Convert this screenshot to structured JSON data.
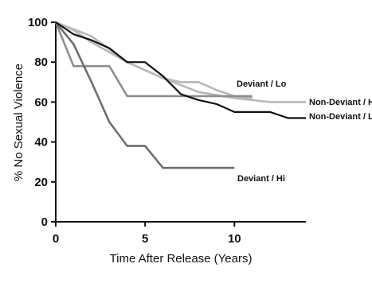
{
  "chart_data": {
    "type": "line",
    "xlabel": "Time After Release (Years)",
    "ylabel": "% No Sexual Violence",
    "xlim": [
      0,
      14
    ],
    "ylim": [
      0,
      100
    ],
    "xticks": [
      0,
      5,
      10
    ],
    "yticks": [
      0,
      20,
      40,
      60,
      80,
      100
    ],
    "grid": false,
    "legend": "none",
    "series": [
      {
        "name": "Deviant / Lo",
        "color": "#b8b8b8",
        "points": [
          [
            0,
            100
          ],
          [
            1,
            96
          ],
          [
            2,
            90
          ],
          [
            3,
            85
          ],
          [
            4,
            80
          ],
          [
            5,
            76
          ],
          [
            6,
            72
          ],
          [
            7,
            70
          ],
          [
            8,
            70
          ],
          [
            9,
            66
          ],
          [
            10,
            63
          ],
          [
            11,
            62
          ]
        ]
      },
      {
        "name": "Non-Deviant / Hi",
        "color": "#b8b8b8",
        "points": [
          [
            0,
            100
          ],
          [
            2,
            93
          ],
          [
            4,
            80
          ],
          [
            6,
            72
          ],
          [
            8,
            65
          ],
          [
            10,
            62
          ],
          [
            12,
            60
          ],
          [
            14,
            60
          ]
        ]
      },
      {
        "name": "Non-Deviant / Lo",
        "color": "#111111",
        "points": [
          [
            0,
            100
          ],
          [
            1,
            94
          ],
          [
            2,
            91
          ],
          [
            3,
            87
          ],
          [
            4,
            80
          ],
          [
            5,
            80
          ],
          [
            6,
            73
          ],
          [
            7,
            64
          ],
          [
            8,
            61
          ],
          [
            9,
            59
          ],
          [
            10,
            55
          ],
          [
            11,
            55
          ],
          [
            12,
            55
          ],
          [
            13,
            52
          ],
          [
            14,
            52
          ]
        ]
      },
      {
        "name": "Deviant / Hi",
        "color": "#6e6e6e",
        "points": [
          [
            0,
            100
          ],
          [
            1,
            89
          ],
          [
            2,
            70
          ],
          [
            3,
            50
          ],
          [
            4,
            38
          ],
          [
            5,
            38
          ],
          [
            6,
            27
          ],
          [
            7,
            27
          ],
          [
            8,
            27
          ],
          [
            9,
            27
          ],
          [
            10,
            27
          ]
        ]
      },
      {
        "name": "",
        "color": "#8e8e8e",
        "points": [
          [
            0,
            100
          ],
          [
            1,
            78
          ],
          [
            2,
            78
          ],
          [
            3,
            78
          ],
          [
            4,
            63
          ],
          [
            5,
            63
          ],
          [
            6,
            63
          ],
          [
            7,
            63
          ],
          [
            8,
            63
          ],
          [
            9,
            63
          ],
          [
            10,
            63
          ],
          [
            11,
            63
          ]
        ]
      }
    ]
  }
}
